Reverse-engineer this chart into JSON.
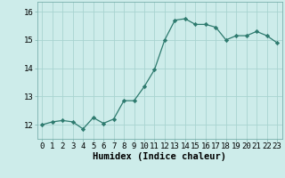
{
  "x": [
    0,
    1,
    2,
    3,
    4,
    5,
    6,
    7,
    8,
    9,
    10,
    11,
    12,
    13,
    14,
    15,
    16,
    17,
    18,
    19,
    20,
    21,
    22,
    23
  ],
  "y": [
    12.0,
    12.1,
    12.15,
    12.1,
    11.85,
    12.25,
    12.05,
    12.2,
    12.85,
    12.85,
    13.35,
    13.95,
    15.0,
    15.7,
    15.75,
    15.55,
    15.55,
    15.45,
    15.0,
    15.15,
    15.15,
    15.3,
    15.15,
    14.9
  ],
  "line_color": "#2d7a6e",
  "marker_color": "#2d7a6e",
  "bg_color": "#cdecea",
  "grid_color": "#a8d4d0",
  "xlabel": "Humidex (Indice chaleur)",
  "ylim": [
    11.5,
    16.35
  ],
  "yticks": [
    12,
    13,
    14,
    15,
    16
  ],
  "xticks": [
    0,
    1,
    2,
    3,
    4,
    5,
    6,
    7,
    8,
    9,
    10,
    11,
    12,
    13,
    14,
    15,
    16,
    17,
    18,
    19,
    20,
    21,
    22,
    23
  ],
  "tick_fontsize": 6.5,
  "xlabel_fontsize": 7.5
}
